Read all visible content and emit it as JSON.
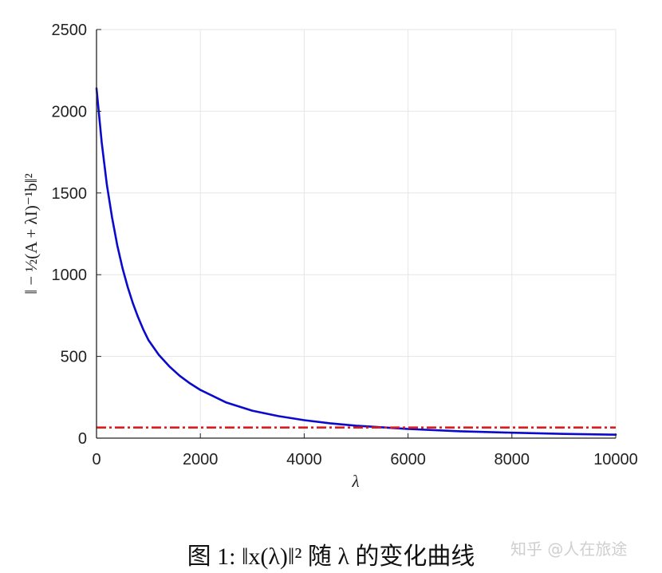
{
  "chart_data": {
    "type": "line",
    "xlabel": "λ",
    "ylabel": "‖ − ½(A + λI)⁻¹b‖²",
    "xlim": [
      0,
      10000
    ],
    "ylim": [
      0,
      2500
    ],
    "xticks": [
      0,
      2000,
      4000,
      6000,
      8000,
      10000
    ],
    "yticks": [
      0,
      500,
      1000,
      1500,
      2000,
      2500
    ],
    "grid": true,
    "series": [
      {
        "style": "solid",
        "color": "#0a0acd",
        "x": [
          0,
          100,
          200,
          300,
          400,
          500,
          600,
          700,
          800,
          900,
          1000,
          1200,
          1400,
          1600,
          1800,
          2000,
          2500,
          3000,
          3500,
          4000,
          4500,
          5000,
          6000,
          7000,
          8000,
          9000,
          10000
        ],
        "y": [
          2140,
          1810,
          1550,
          1350,
          1180,
          1040,
          925,
          825,
          740,
          665,
          600,
          510,
          440,
          382,
          335,
          295,
          218,
          168,
          135,
          110,
          91,
          76,
          56,
          42,
          33,
          26,
          21
        ]
      },
      {
        "style": "dashdot",
        "color": "#e31a1c",
        "x": [
          0,
          10000
        ],
        "y": [
          65,
          65
        ]
      }
    ]
  },
  "caption": "图 1: ‖x(λ)‖² 随 λ 的变化曲线",
  "watermark": "知乎 @人在旅途"
}
